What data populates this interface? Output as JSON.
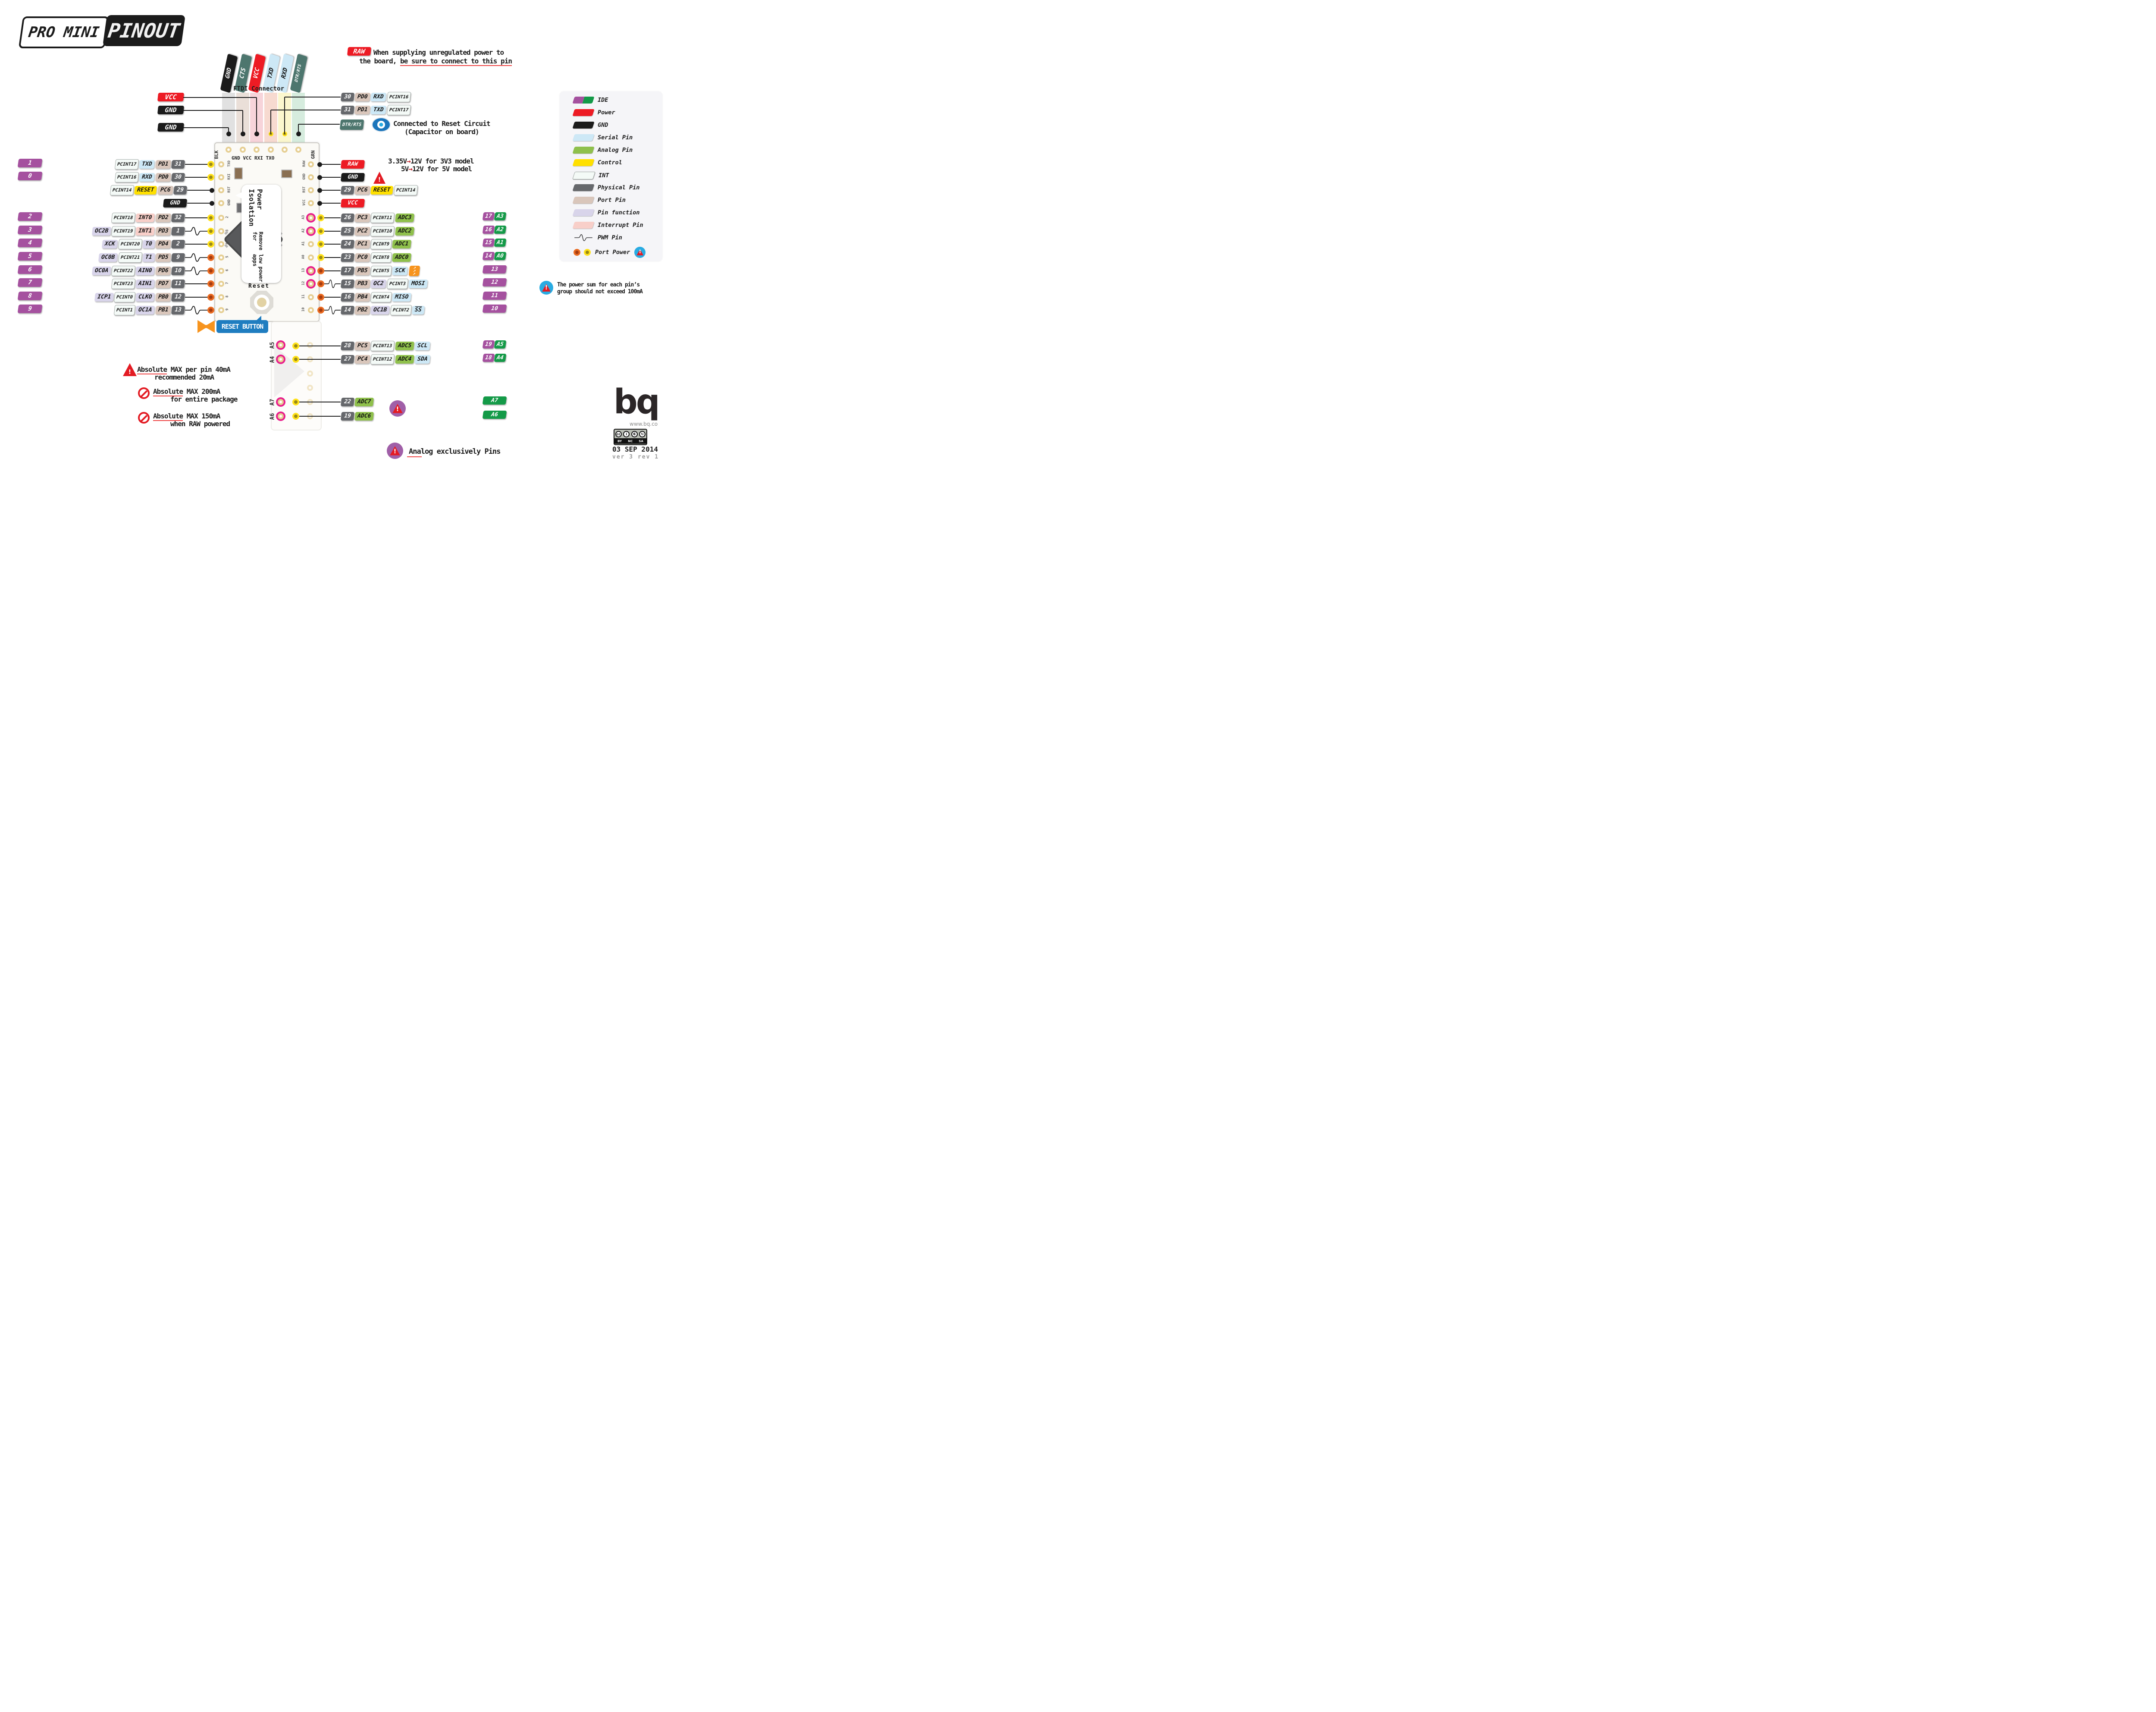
{
  "title": {
    "left": "PRO MINI",
    "right": "PINOUT"
  },
  "ftdi": {
    "caption": "FTDI Connector",
    "pins": [
      {
        "t": "GND",
        "c": "gnd"
      },
      {
        "t": "CTS",
        "c": "teal"
      },
      {
        "t": "VCC",
        "c": "power"
      },
      {
        "t": "TXD",
        "c": "serial"
      },
      {
        "t": "RXD",
        "c": "serial"
      },
      {
        "t": "DTR/RTS",
        "c": "teal",
        "s": 1
      }
    ]
  },
  "raw_note": {
    "badge": "RAW",
    "line1": "When supplying unregulated power to",
    "line2_prefix": "the board, ",
    "line2_underlined": "be sure to connect to this pin"
  },
  "reset_circuit_note": {
    "badge": "DTR/RTS",
    "line1": "Connected to Reset Circuit",
    "line2": "(Capacitor on board)"
  },
  "voltage_note": {
    "arrow": "→",
    "line1_pre": "3.35V",
    "line1_post": "12V for 3V3 model",
    "line2_pre": "5V",
    "line2_post": "12V for  5V model"
  },
  "top_left_labels": [
    {
      "t": "VCC",
      "c": "power"
    },
    {
      "t": "GND",
      "c": "gnd"
    },
    {
      "t": "GND",
      "c": "gnd"
    }
  ],
  "top_dots": [
    "black",
    "black",
    "black",
    "yellow",
    "yellow",
    "black"
  ],
  "left_rows": [
    {
      "num": "1",
      "dot": "yellow",
      "pwm": false,
      "cells": [
        {
          "t": "PCINT17",
          "c": "int",
          "s": 1
        },
        {
          "t": "TXD",
          "c": "serial"
        },
        {
          "t": "PD1",
          "c": "port"
        },
        {
          "t": "31",
          "c": "phys"
        }
      ]
    },
    {
      "num": "0",
      "dot": "yellow",
      "pwm": false,
      "cells": [
        {
          "t": "PCINT16",
          "c": "int",
          "s": 1
        },
        {
          "t": "RXD",
          "c": "serial"
        },
        {
          "t": "PD0",
          "c": "port"
        },
        {
          "t": "30",
          "c": "phys"
        }
      ]
    },
    {
      "num": "",
      "dot": "black",
      "pwm": false,
      "cells": [
        {
          "t": "PCINT14",
          "c": "int",
          "s": 1
        },
        {
          "t": "RESET",
          "c": "control"
        },
        {
          "t": "PC6",
          "c": "port"
        },
        {
          "t": "29",
          "c": "phys"
        }
      ]
    },
    {
      "num": "",
      "dot": "black",
      "pwm": false,
      "cells": [
        {
          "t": "GND",
          "c": "gnd",
          "w": 1
        }
      ]
    },
    {
      "num": "2",
      "dot": "yellow",
      "pwm": false,
      "cells": [
        {
          "t": "PCINT18",
          "c": "int",
          "s": 1
        },
        {
          "t": "INT0",
          "c": "interrupt"
        },
        {
          "t": "PD2",
          "c": "port"
        },
        {
          "t": "32",
          "c": "phys"
        }
      ]
    },
    {
      "num": "3",
      "dot": "yellow",
      "pwm": true,
      "cells": [
        {
          "t": "OC2B",
          "c": "function"
        },
        {
          "t": "PCINT19",
          "c": "int",
          "s": 1
        },
        {
          "t": "INT1",
          "c": "interrupt"
        },
        {
          "t": "PD3",
          "c": "port"
        },
        {
          "t": "1",
          "c": "phys"
        }
      ]
    },
    {
      "num": "4",
      "dot": "yellow",
      "pwm": false,
      "cells": [
        {
          "t": "XCK",
          "c": "function"
        },
        {
          "t": "PCINT20",
          "c": "int",
          "s": 1
        },
        {
          "t": "T0",
          "c": "function"
        },
        {
          "t": "PD4",
          "c": "port"
        },
        {
          "t": "2",
          "c": "phys"
        }
      ]
    },
    {
      "num": "5",
      "dot": "orange",
      "pwm": true,
      "cells": [
        {
          "t": "OC0B",
          "c": "function"
        },
        {
          "t": "PCINT21",
          "c": "int",
          "s": 1
        },
        {
          "t": "T1",
          "c": "function"
        },
        {
          "t": "PD5",
          "c": "port"
        },
        {
          "t": "9",
          "c": "phys"
        }
      ]
    },
    {
      "num": "6",
      "dot": "orange",
      "pwm": true,
      "cells": [
        {
          "t": "OC0A",
          "c": "function"
        },
        {
          "t": "PCINT22",
          "c": "int",
          "s": 1
        },
        {
          "t": "AIN0",
          "c": "function"
        },
        {
          "t": "PD6",
          "c": "port"
        },
        {
          "t": "10",
          "c": "phys"
        }
      ]
    },
    {
      "num": "7",
      "dot": "orange",
      "pwm": false,
      "cells": [
        {
          "t": "PCINT23",
          "c": "int",
          "s": 1
        },
        {
          "t": "AIN1",
          "c": "function"
        },
        {
          "t": "PD7",
          "c": "port"
        },
        {
          "t": "11",
          "c": "phys"
        }
      ]
    },
    {
      "num": "8",
      "dot": "orange",
      "pwm": false,
      "cells": [
        {
          "t": "ICP1",
          "c": "function"
        },
        {
          "t": "PCINT0",
          "c": "int",
          "s": 1
        },
        {
          "t": "CLKO",
          "c": "function"
        },
        {
          "t": "PB0",
          "c": "port"
        },
        {
          "t": "12",
          "c": "phys"
        }
      ]
    },
    {
      "num": "9",
      "dot": "orange",
      "pwm": true,
      "cells": [
        {
          "t": "PCINT1",
          "c": "int",
          "s": 1
        },
        {
          "t": "OC1A",
          "c": "function"
        },
        {
          "t": "PB1",
          "c": "port"
        },
        {
          "t": "13",
          "c": "phys"
        }
      ]
    }
  ],
  "right_top_rows": [
    {
      "cells": [
        {
          "t": "30",
          "c": "phys"
        },
        {
          "t": "PD0",
          "c": "port"
        },
        {
          "t": "RXD",
          "c": "serial"
        },
        {
          "t": "PCINT16",
          "c": "int",
          "s": 1
        }
      ]
    },
    {
      "cells": [
        {
          "t": "31",
          "c": "phys"
        },
        {
          "t": "PD1",
          "c": "port"
        },
        {
          "t": "TXD",
          "c": "serial"
        },
        {
          "t": "PCINT17",
          "c": "int",
          "s": 1
        }
      ]
    }
  ],
  "right_rows": [
    {
      "dot": "black",
      "pwm": false,
      "cells": [
        {
          "t": "RAW",
          "c": "power",
          "w": 1
        }
      ],
      "tags": []
    },
    {
      "dot": "black",
      "pwm": false,
      "cells": [
        {
          "t": "GND",
          "c": "gnd",
          "w": 1
        }
      ],
      "tags": []
    },
    {
      "dot": "black",
      "pwm": false,
      "cells": [
        {
          "t": "29",
          "c": "phys"
        },
        {
          "t": "PC6",
          "c": "port"
        },
        {
          "t": "RESET",
          "c": "control"
        },
        {
          "t": "PCINT14",
          "c": "int",
          "s": 1
        }
      ],
      "tags": []
    },
    {
      "dot": "black",
      "pwm": false,
      "cells": [
        {
          "t": "VCC",
          "c": "power",
          "w": 1
        }
      ],
      "tags": []
    },
    {
      "dot": "yellow",
      "pwm": false,
      "cells": [
        {
          "t": "26",
          "c": "phys"
        },
        {
          "t": "PC3",
          "c": "port"
        },
        {
          "t": "PCINT11",
          "c": "int",
          "s": 1
        },
        {
          "t": "ADC3",
          "c": "analog"
        }
      ],
      "tags": [
        {
          "t": "17",
          "c": "num"
        },
        {
          "t": "A3",
          "c": "ide-analog"
        }
      ]
    },
    {
      "dot": "yellow",
      "pwm": false,
      "cells": [
        {
          "t": "25",
          "c": "phys"
        },
        {
          "t": "PC2",
          "c": "port"
        },
        {
          "t": "PCINT10",
          "c": "int",
          "s": 1
        },
        {
          "t": "ADC2",
          "c": "analog"
        }
      ],
      "tags": [
        {
          "t": "16",
          "c": "num"
        },
        {
          "t": "A2",
          "c": "ide-analog"
        }
      ]
    },
    {
      "dot": "yellow",
      "pwm": false,
      "cells": [
        {
          "t": "24",
          "c": "phys"
        },
        {
          "t": "PC1",
          "c": "port"
        },
        {
          "t": "PCINT9",
          "c": "int",
          "s": 1
        },
        {
          "t": "ADC1",
          "c": "analog"
        }
      ],
      "tags": [
        {
          "t": "15",
          "c": "num"
        },
        {
          "t": "A1",
          "c": "ide-analog"
        }
      ]
    },
    {
      "dot": "yellow",
      "pwm": false,
      "cells": [
        {
          "t": "23",
          "c": "phys"
        },
        {
          "t": "PC0",
          "c": "port"
        },
        {
          "t": "PCINT8",
          "c": "int",
          "s": 1
        },
        {
          "t": "ADC0",
          "c": "analog"
        }
      ],
      "tags": [
        {
          "t": "14",
          "c": "num"
        },
        {
          "t": "A0",
          "c": "ide-analog"
        }
      ]
    },
    {
      "dot": "orange",
      "pwm": false,
      "upload": true,
      "cells": [
        {
          "t": "17",
          "c": "phys"
        },
        {
          "t": "PB5",
          "c": "port"
        },
        {
          "t": "PCINT5",
          "c": "int",
          "s": 1
        },
        {
          "t": "SCK",
          "c": "serial"
        }
      ],
      "tags": [
        {
          "t": "13",
          "c": "num",
          "w": 1
        }
      ]
    },
    {
      "dot": "orange",
      "pwm": true,
      "cells": [
        {
          "t": "15",
          "c": "phys"
        },
        {
          "t": "PB3",
          "c": "port"
        },
        {
          "t": "OC2",
          "c": "function"
        },
        {
          "t": "PCINT3",
          "c": "int",
          "s": 1
        },
        {
          "t": "MOSI",
          "c": "serial"
        }
      ],
      "tags": [
        {
          "t": "12",
          "c": "num",
          "w": 1
        }
      ]
    },
    {
      "dot": "orange",
      "pwm": false,
      "cells": [
        {
          "t": "16",
          "c": "phys"
        },
        {
          "t": "PB4",
          "c": "port"
        },
        {
          "t": "PCINT4",
          "c": "int",
          "s": 1
        },
        {
          "t": "MISO",
          "c": "serial"
        }
      ],
      "tags": [
        {
          "t": "11",
          "c": "num",
          "w": 1
        }
      ]
    },
    {
      "dot": "orange",
      "pwm": true,
      "cells": [
        {
          "t": "14",
          "c": "phys"
        },
        {
          "t": "PB2",
          "c": "port"
        },
        {
          "t": "OC1B",
          "c": "function"
        },
        {
          "t": "PCINT2",
          "c": "int",
          "s": 1
        },
        {
          "t": "SS",
          "c": "serial",
          "o": 1
        }
      ],
      "tags": [
        {
          "t": "10",
          "c": "num",
          "w": 1
        }
      ]
    },
    {
      "dot": "yellow",
      "pwm": false,
      "cells": [
        {
          "t": "28",
          "c": "phys"
        },
        {
          "t": "PC5",
          "c": "port"
        },
        {
          "t": "PCINT13",
          "c": "int",
          "s": 1
        },
        {
          "t": "ADC5",
          "c": "analog"
        },
        {
          "t": "SCL",
          "c": "serial"
        }
      ],
      "tags": [
        {
          "t": "19",
          "c": "num"
        },
        {
          "t": "A5",
          "c": "ide-analog"
        }
      ]
    },
    {
      "dot": "yellow",
      "pwm": false,
      "cells": [
        {
          "t": "27",
          "c": "phys"
        },
        {
          "t": "PC4",
          "c": "port"
        },
        {
          "t": "PCINT12",
          "c": "int",
          "s": 1
        },
        {
          "t": "ADC4",
          "c": "analog"
        },
        {
          "t": "SDA",
          "c": "serial"
        }
      ],
      "tags": [
        {
          "t": "18",
          "c": "num"
        },
        {
          "t": "A4",
          "c": "ide-analog"
        }
      ]
    },
    {
      "dot": "yellow",
      "pwm": false,
      "warn": true,
      "cells": [
        {
          "t": "22",
          "c": "phys"
        },
        {
          "t": "ADC7",
          "c": "analog"
        }
      ],
      "tags": [
        {
          "t": "A7",
          "c": "ide-analog",
          "w": 1
        }
      ]
    },
    {
      "dot": "yellow",
      "pwm": false,
      "cells": [
        {
          "t": "19",
          "c": "phys"
        },
        {
          "t": "ADC6",
          "c": "analog"
        }
      ],
      "tags": [
        {
          "t": "A6",
          "c": "ide-analog",
          "w": 1
        }
      ]
    }
  ],
  "board": {
    "blk": "BLK",
    "grn": "GRN",
    "silkscreen": "GND VCC RXI TXO",
    "callout_title": "Power Isolation",
    "callout_line1": "Remove for",
    "callout_line2": "low power apps",
    "reset_label": "Reset",
    "left_edge": [
      "TXO",
      "RXI",
      "RST",
      "GND",
      "2",
      "3",
      "4",
      "5",
      "6",
      "7",
      "8",
      "9"
    ],
    "right_edge": [
      "RAW",
      "GND",
      "RST",
      "VCC",
      "A3",
      "A2",
      "A1",
      "A0",
      "13",
      "12",
      "11",
      "10"
    ],
    "ghost_labels": [
      "A5",
      "A4",
      "A7",
      "A6"
    ]
  },
  "reset_button_label": "RESET BUTTON",
  "legend": {
    "items": [
      {
        "label": "IDE",
        "type": "ide",
        "colors": [
          "#A5519F",
          "#149A48"
        ]
      },
      {
        "label": "Power",
        "type": "swatch",
        "color": "#ED1B24"
      },
      {
        "label": "GND",
        "type": "swatch",
        "color": "#1B1B1B"
      },
      {
        "label": "Serial Pin",
        "type": "swatch",
        "color": "#CDE8F6"
      },
      {
        "label": "Analog Pin",
        "type": "swatch",
        "color": "#8FC04C"
      },
      {
        "label": "Control",
        "type": "swatch",
        "color": "#FFE000"
      },
      {
        "label": "INT",
        "type": "swatch",
        "color": "#F4FAF7",
        "border": "#9AA19E"
      },
      {
        "label": "Physical Pin",
        "type": "swatch",
        "color": "#66686C"
      },
      {
        "label": "Port Pin",
        "type": "swatch",
        "color": "#D9C6BB"
      },
      {
        "label": "Pin function",
        "type": "swatch",
        "color": "#D8D4EA"
      },
      {
        "label": "Interrupt Pin",
        "type": "swatch",
        "color": "#F8CFC9"
      },
      {
        "label": "PWM Pin",
        "type": "pwm"
      },
      {
        "label": "Port Power",
        "type": "portpower",
        "colors": [
          "#E96A20",
          "#FFE11A"
        ]
      }
    ]
  },
  "power_sum_note": {
    "line1": "The power sum for each pin’s",
    "line2": "group should not exceed 100mA"
  },
  "warnings": [
    {
      "icon": "triangle",
      "word": "Absolute",
      "rest": " MAX per pin 40mA",
      "line2": "recommended 20mA"
    },
    {
      "icon": "no-entry",
      "word": "Absolute",
      "rest": " MAX 200mA",
      "line2": "for entire package"
    },
    {
      "icon": "no-entry",
      "word": "Absolute",
      "rest": " MAX 150mA",
      "line2": "when RAW powered"
    }
  ],
  "analog_note": {
    "text": "Analog exclusively Pins"
  },
  "footer": {
    "logo": "bq",
    "url": "www.bq.co",
    "cc": [
      "BY",
      "NC",
      "SA"
    ],
    "date": "03 SEP 2014",
    "version": "ver 3 rev 1"
  },
  "colors": {
    "ide_purple": "#A5519F",
    "ide_green": "#149A48",
    "power_red": "#ED1B24",
    "gnd_black": "#1B1B1B",
    "serial_blue": "#CDE8F6",
    "analog_green": "#8FC04C",
    "control_yellow": "#FFE000",
    "physical_gray": "#66686C",
    "port_tan": "#D9C6BB",
    "function_lavender": "#D8D4EA",
    "interrupt_pink": "#F8CFC9",
    "teal": "#4D766E",
    "highlight_pink": "#E91E8C",
    "reset_blue": "#1F7DC0"
  }
}
